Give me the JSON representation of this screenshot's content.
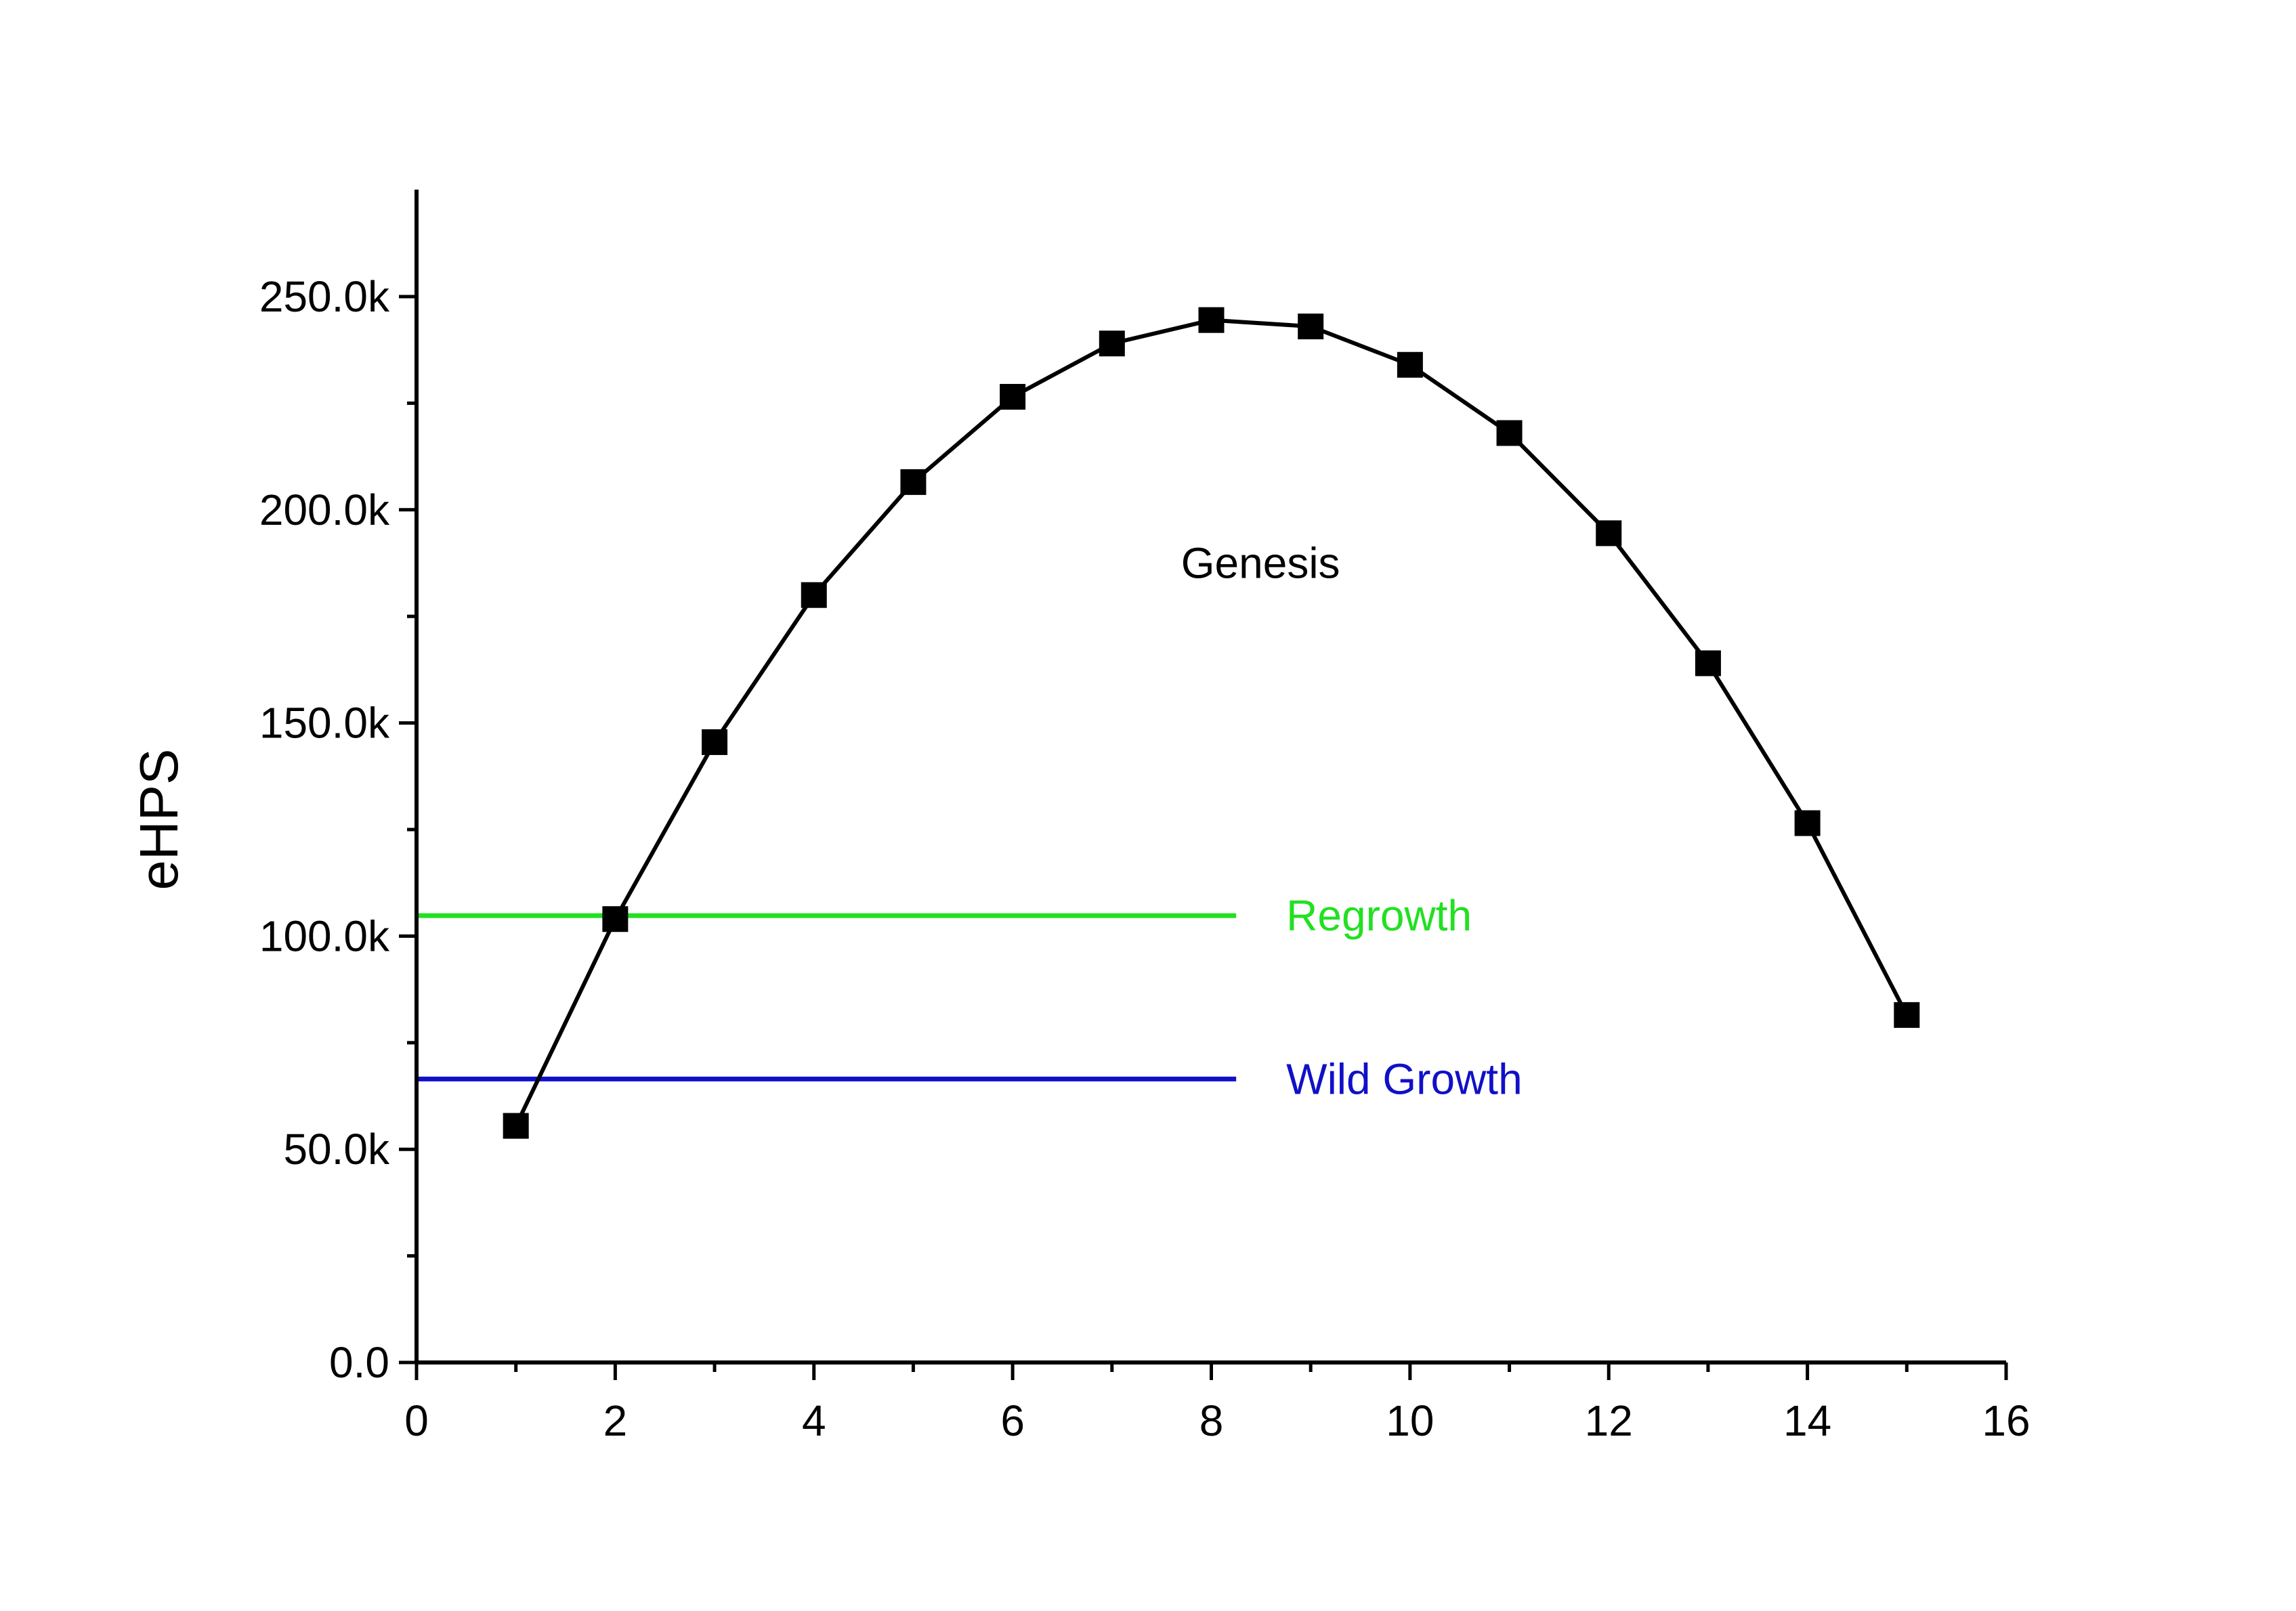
{
  "chart_data": {
    "type": "line",
    "title": "",
    "xlabel": "",
    "ylabel": "eHPS",
    "xlim": [
      0,
      16
    ],
    "ylim": [
      0,
      275000
    ],
    "x_ticks": [
      0,
      2,
      4,
      6,
      8,
      10,
      12,
      14,
      16
    ],
    "x_tick_labels": [
      "0",
      "2",
      "4",
      "6",
      "8",
      "10",
      "12",
      "14",
      "16"
    ],
    "y_ticks": [
      0,
      50000,
      100000,
      150000,
      200000,
      250000
    ],
    "y_tick_labels": [
      "0.0",
      "50.0k",
      "100.0k",
      "150.0k",
      "200.0k",
      "250.0k"
    ],
    "grid": false,
    "legend": "none",
    "series": [
      {
        "label": "Genesis",
        "color": "#000000",
        "marker": "square",
        "x": [
          1,
          2,
          3,
          4,
          5,
          6,
          7,
          8,
          9,
          10,
          11,
          12,
          13,
          14,
          15
        ],
        "y": [
          55500,
          104000,
          145500,
          180000,
          206500,
          226500,
          239000,
          244500,
          243000,
          234000,
          218000,
          194500,
          164000,
          126500,
          81500
        ]
      }
    ],
    "reference_lines": [
      {
        "label": "Regrowth",
        "color": "#22e022",
        "y": 104800,
        "x_range": [
          0,
          8.25
        ]
      },
      {
        "label": "Wild Growth",
        "color": "#1010c8",
        "y": 66500,
        "x_range": [
          0,
          8.25
        ]
      }
    ]
  }
}
